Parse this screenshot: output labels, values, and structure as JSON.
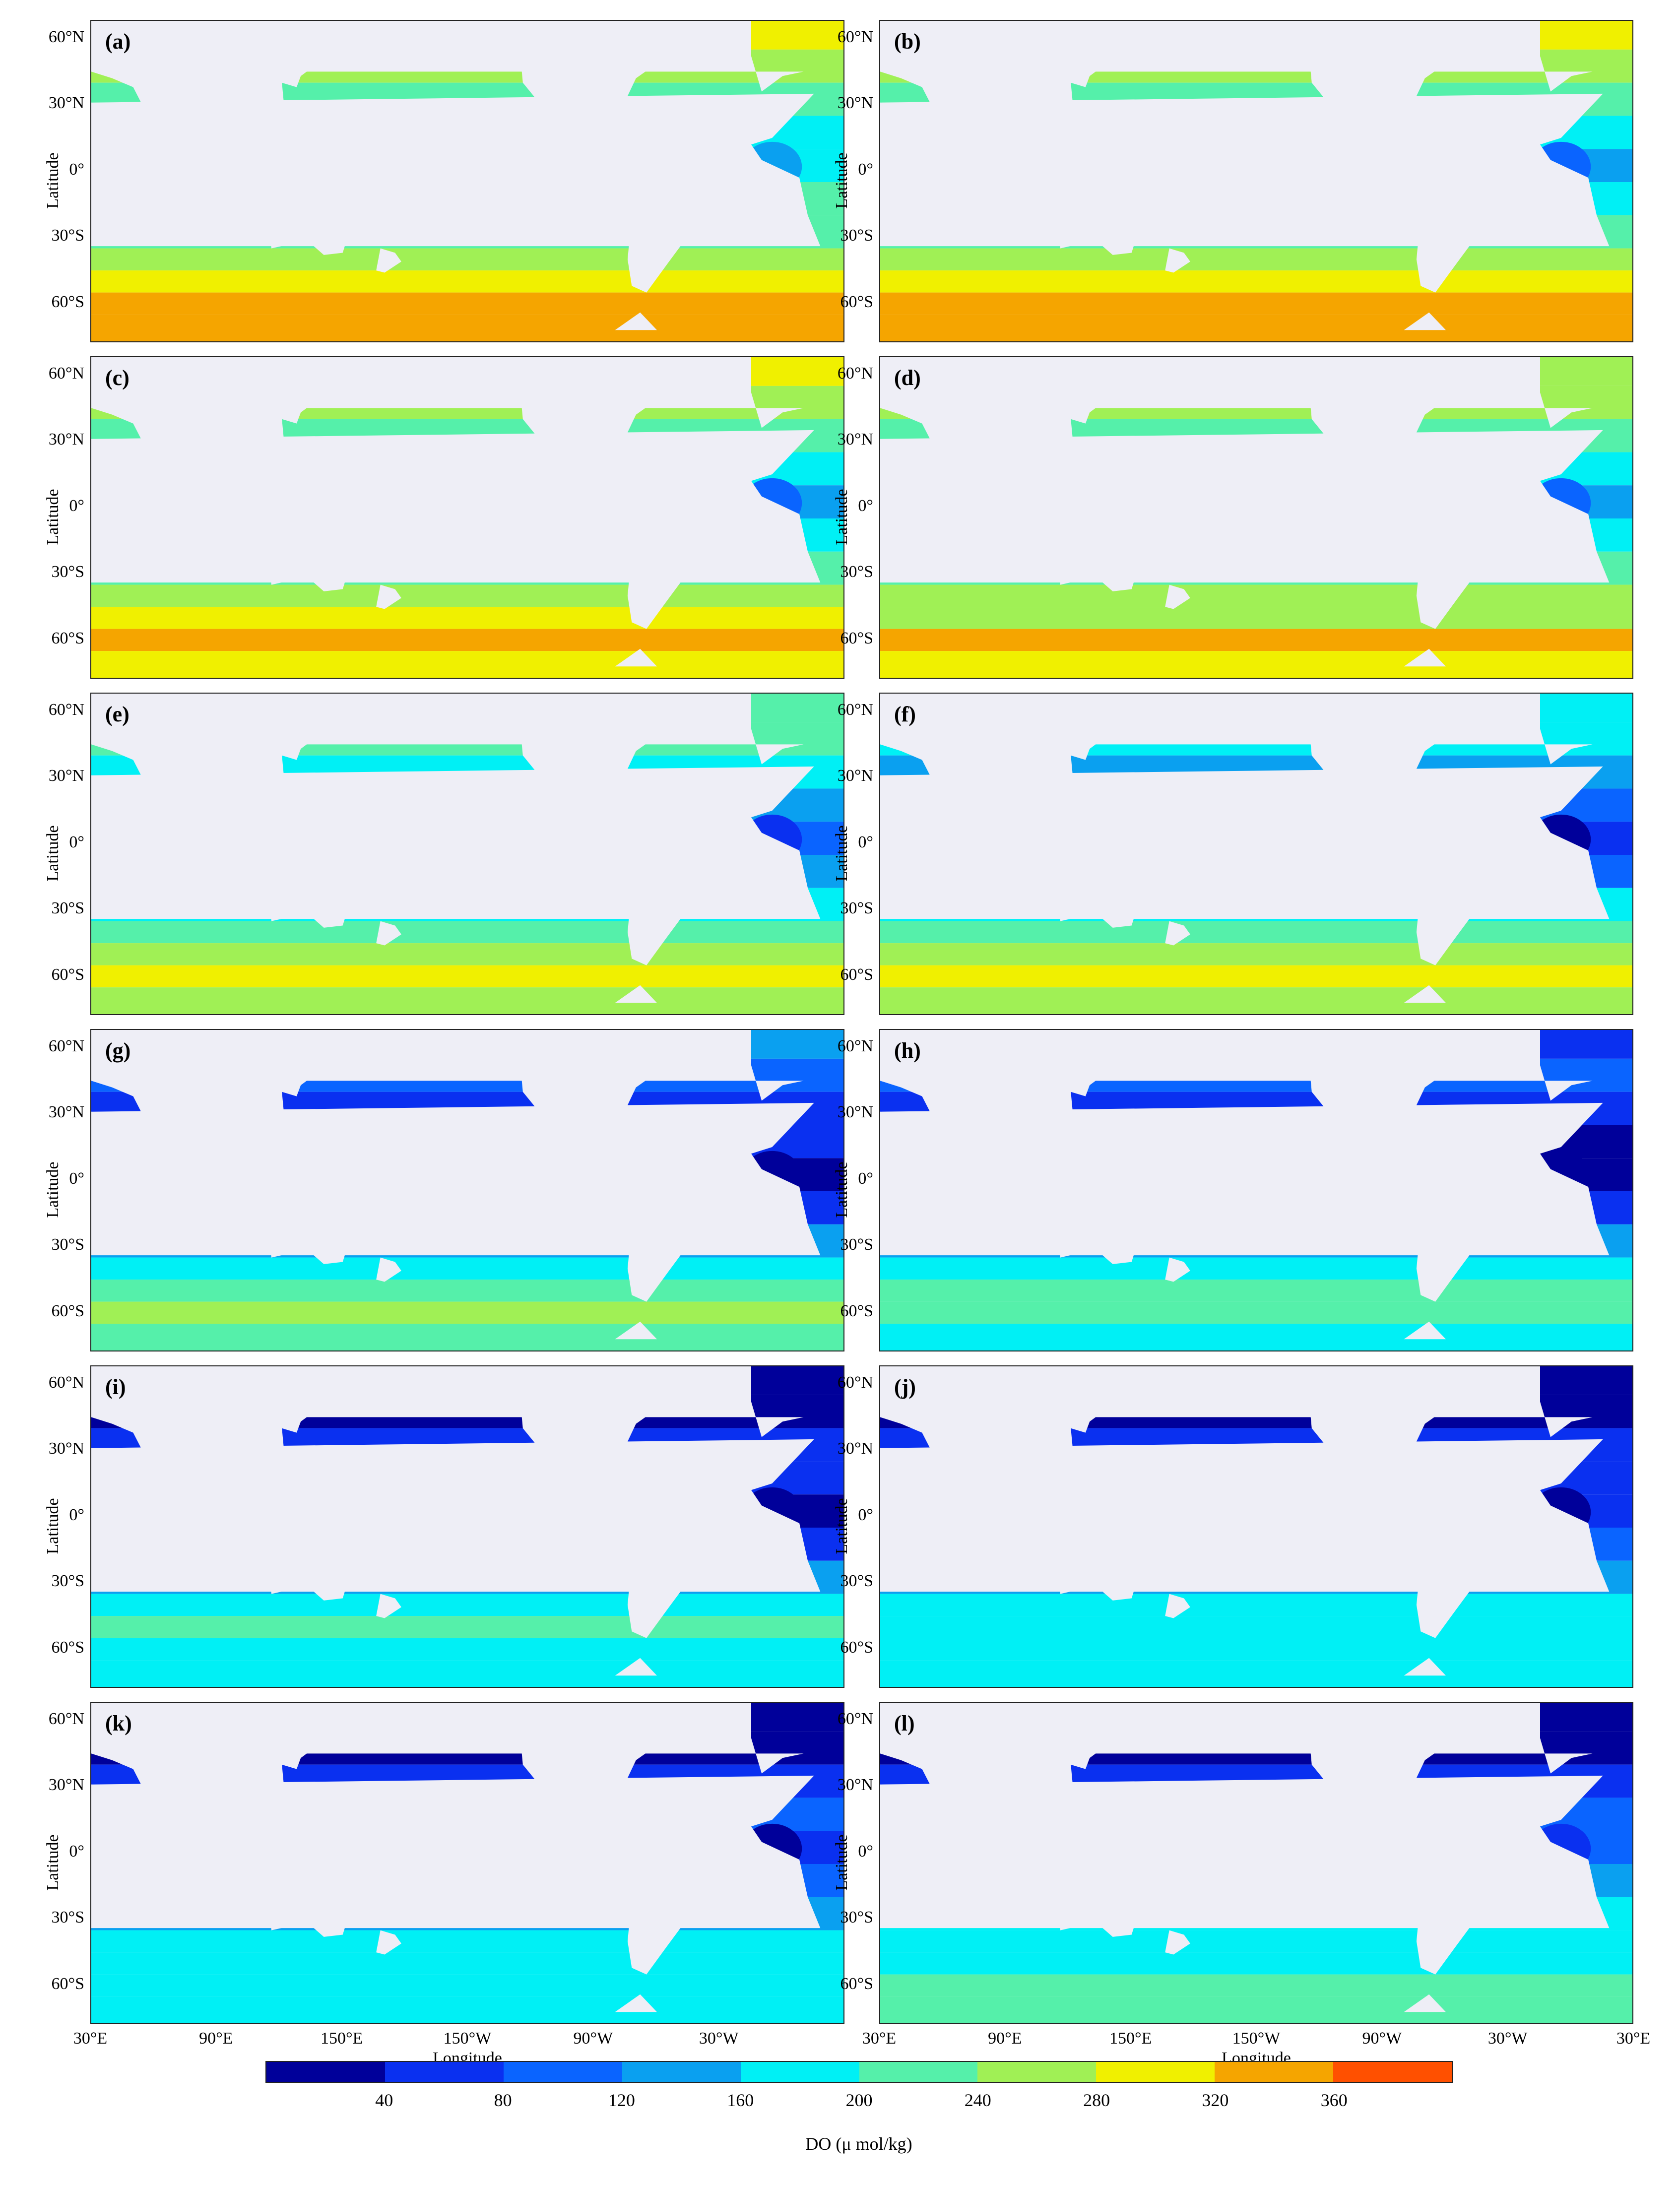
{
  "panels": [
    {
      "label": "(a)",
      "level": 0
    },
    {
      "label": "(b)",
      "level": 1
    },
    {
      "label": "(c)",
      "level": 2
    },
    {
      "label": "(d)",
      "level": 3
    },
    {
      "label": "(e)",
      "level": 4
    },
    {
      "label": "(f)",
      "level": 5
    },
    {
      "label": "(g)",
      "level": 6
    },
    {
      "label": "(h)",
      "level": 7
    },
    {
      "label": "(i)",
      "level": 8
    },
    {
      "label": "(j)",
      "level": 9
    },
    {
      "label": "(k)",
      "level": 10
    },
    {
      "label": "(l)",
      "level": 11
    }
  ],
  "axes": {
    "ylabel": "Latitude",
    "xlabel": "Longitude",
    "yticks": [
      "60°N",
      "30°N",
      "0°",
      "30°S",
      "60°S"
    ],
    "xticks_left": [
      "30°E",
      "90°E",
      "150°E",
      "150°W",
      "90°W",
      "30°W",
      "30°E"
    ],
    "xticks_right": [
      "30°E",
      "90°E",
      "150°E",
      "150°W",
      "90°W",
      "30°W",
      "30°E"
    ],
    "xticks_joined_label": "30°E30°E"
  },
  "colorbar": {
    "label": "DO (μ mol/kg)",
    "ticks": [
      "40",
      "80",
      "120",
      "160",
      "200",
      "240",
      "280",
      "320",
      "360"
    ],
    "colors": [
      "#00009a",
      "#0a30f0",
      "#0a64ff",
      "#0aa0f0",
      "#00f0f5",
      "#55f0aa",
      "#a0f055",
      "#f0f000",
      "#f5a500",
      "#ff5000"
    ]
  },
  "land_color": "#eeeef6",
  "ocean_bg": "#ffffff"
}
